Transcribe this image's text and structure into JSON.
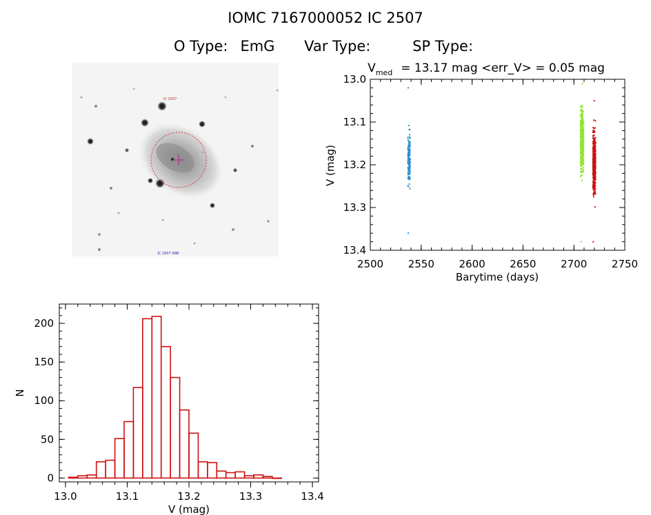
{
  "header": {
    "title": "IOMC 7167000052    IC 2507",
    "o_type_label": "O Type:",
    "o_type_value": "EmG",
    "var_type_label": "Var Type:",
    "var_type_value": "",
    "sp_type_label": "SP Type:",
    "sp_type_value": ""
  },
  "finder": {
    "object_label": "IC 2507",
    "bottom_label": "IC 2507 SNR"
  },
  "chart_data": [
    {
      "type": "scatter",
      "title_main": "V",
      "title_sub": "med",
      "title_rest": "= 13.17 mag <err_V> = 0.05 mag",
      "xlabel": "Barytime (days)",
      "ylabel": "V (mag)",
      "xlim": [
        2500,
        2750
      ],
      "ylim": [
        13.4,
        13.0
      ],
      "y_inverted": true,
      "x_ticks": [
        "2500",
        "2550",
        "2600",
        "2650",
        "2700",
        "2750"
      ],
      "y_ticks": [
        "13.0",
        "13.1",
        "13.2",
        "13.3",
        "13.4"
      ],
      "series": [
        {
          "color": "#2a8fd0",
          "x_center": 2538,
          "x_spread": 1.2,
          "y_min": 13.02,
          "y_max": 13.36,
          "y_center": 13.19,
          "y_sigma": 0.04,
          "count": 170
        },
        {
          "color": "#8ee82a",
          "x_center": 2708,
          "x_spread": 1.5,
          "y_min": 13.01,
          "y_max": 13.38,
          "y_center": 13.14,
          "y_sigma": 0.05,
          "count": 420
        },
        {
          "color": "#cc1111",
          "x_center": 2720,
          "x_spread": 1.3,
          "y_min": 13.05,
          "y_max": 13.38,
          "y_center": 13.2,
          "y_sigma": 0.05,
          "count": 420
        }
      ]
    },
    {
      "type": "bar",
      "title": "",
      "xlabel": "V (mag)",
      "ylabel": "N",
      "xlim": [
        12.99,
        13.41
      ],
      "ylim": [
        -5,
        225
      ],
      "bin_width": 0.015,
      "bin_start": 13.005,
      "x_ticks": [
        "13.0",
        "13.1",
        "13.2",
        "13.3",
        "13.4"
      ],
      "y_ticks": [
        "0",
        "50",
        "100",
        "150",
        "200"
      ],
      "color": "#cc1111",
      "values": [
        1,
        3,
        4,
        21,
        23,
        51,
        73,
        117,
        206,
        209,
        170,
        130,
        88,
        58,
        21,
        20,
        9,
        7,
        8,
        3,
        4,
        2,
        0
      ]
    }
  ]
}
